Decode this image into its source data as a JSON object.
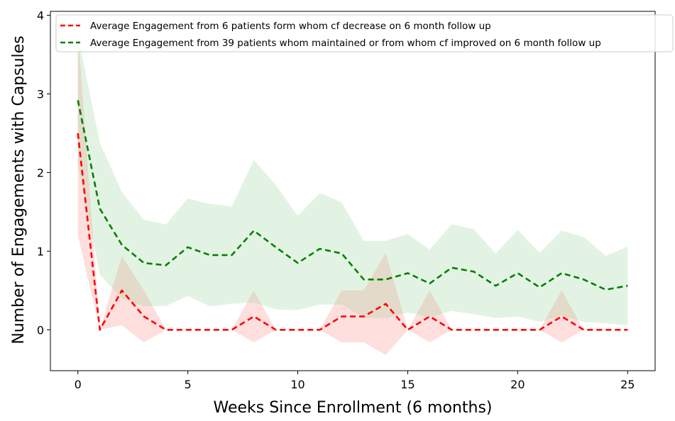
{
  "chart_data": {
    "type": "line",
    "title": "",
    "xlabel": "Weeks Since Enrollment (6 months)",
    "ylabel": "Number of Engagements with Capsules",
    "xlim": [
      -1.25,
      26.25
    ],
    "ylim": [
      -0.52,
      4.05
    ],
    "xticks": [
      0,
      5,
      10,
      15,
      20,
      25
    ],
    "yticks": [
      0,
      1,
      2,
      3,
      4
    ],
    "grid": false,
    "legend_position": "top-right",
    "x": [
      0,
      1,
      2,
      3,
      4,
      5,
      6,
      7,
      8,
      9,
      10,
      11,
      12,
      13,
      14,
      15,
      16,
      17,
      18,
      19,
      20,
      21,
      22,
      23,
      24,
      25
    ],
    "series": [
      {
        "name": "Average Engagement from 6 patients form whom cf decrease on 6 month follow up",
        "color": "#ff0000",
        "band_color": "#ff9999",
        "values": [
          2.5,
          0,
          0.5,
          0.17,
          0,
          0,
          0,
          0,
          0.17,
          0,
          0,
          0,
          0.17,
          0.17,
          0.33,
          0,
          0.17,
          0,
          0,
          0,
          0,
          0,
          0.17,
          0,
          0,
          0
        ],
        "lower": [
          1.2,
          0,
          0.06,
          -0.16,
          0,
          0,
          0,
          0,
          -0.16,
          0,
          0,
          0,
          -0.16,
          -0.16,
          -0.32,
          0,
          -0.16,
          0,
          0,
          0,
          0,
          0,
          -0.16,
          0,
          0,
          0
        ],
        "upper": [
          3.8,
          0,
          0.94,
          0.5,
          0,
          0,
          0,
          0,
          0.5,
          0,
          0,
          0,
          0.5,
          0.5,
          0.98,
          0,
          0.5,
          0,
          0,
          0,
          0,
          0,
          0.5,
          0,
          0,
          0
        ]
      },
      {
        "name": "Average Engagement from 39 patients whom maintained or from whom cf improved on 6 month follow up",
        "color": "#008000",
        "band_color": "#8fcf8f",
        "values": [
          2.92,
          1.54,
          1.08,
          0.85,
          0.82,
          1.05,
          0.95,
          0.95,
          1.26,
          1.05,
          0.85,
          1.03,
          0.97,
          0.64,
          0.64,
          0.72,
          0.59,
          0.79,
          0.74,
          0.56,
          0.72,
          0.54,
          0.72,
          0.64,
          0.51,
          0.56
        ],
        "lower": [
          2.1,
          0.7,
          0.4,
          0.3,
          0.3,
          0.43,
          0.3,
          0.33,
          0.35,
          0.26,
          0.25,
          0.32,
          0.32,
          0.15,
          0.15,
          0.22,
          0.16,
          0.24,
          0.2,
          0.15,
          0.17,
          0.1,
          0.18,
          0.1,
          0.08,
          0.06
        ],
        "upper": [
          3.75,
          2.38,
          1.75,
          1.4,
          1.34,
          1.67,
          1.6,
          1.57,
          2.16,
          1.84,
          1.45,
          1.74,
          1.62,
          1.13,
          1.13,
          1.22,
          1.02,
          1.34,
          1.28,
          0.97,
          1.27,
          0.98,
          1.26,
          1.18,
          0.94,
          1.06
        ]
      }
    ]
  }
}
